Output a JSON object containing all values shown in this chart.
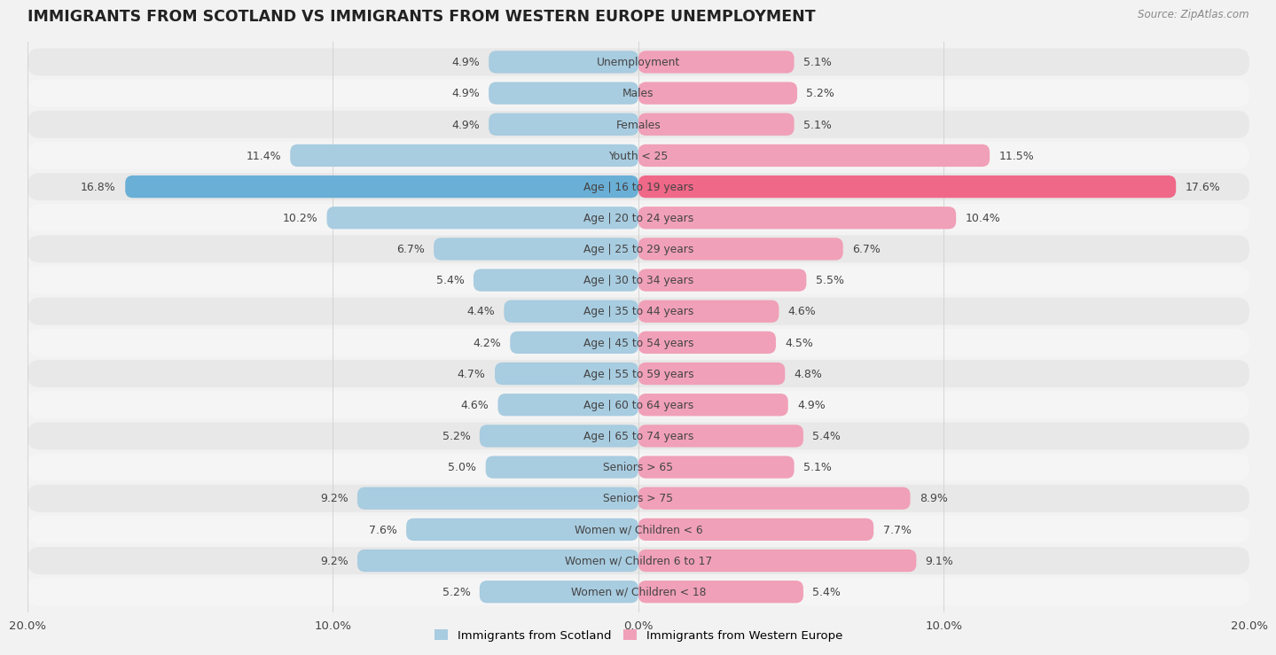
{
  "title": "IMMIGRANTS FROM SCOTLAND VS IMMIGRANTS FROM WESTERN EUROPE UNEMPLOYMENT",
  "source": "Source: ZipAtlas.com",
  "categories": [
    "Unemployment",
    "Males",
    "Females",
    "Youth < 25",
    "Age | 16 to 19 years",
    "Age | 20 to 24 years",
    "Age | 25 to 29 years",
    "Age | 30 to 34 years",
    "Age | 35 to 44 years",
    "Age | 45 to 54 years",
    "Age | 55 to 59 years",
    "Age | 60 to 64 years",
    "Age | 65 to 74 years",
    "Seniors > 65",
    "Seniors > 75",
    "Women w/ Children < 6",
    "Women w/ Children 6 to 17",
    "Women w/ Children < 18"
  ],
  "scotland_values": [
    4.9,
    4.9,
    4.9,
    11.4,
    16.8,
    10.2,
    6.7,
    5.4,
    4.4,
    4.2,
    4.7,
    4.6,
    5.2,
    5.0,
    9.2,
    7.6,
    9.2,
    5.2
  ],
  "western_europe_values": [
    5.1,
    5.2,
    5.1,
    11.5,
    17.6,
    10.4,
    6.7,
    5.5,
    4.6,
    4.5,
    4.8,
    4.9,
    5.4,
    5.1,
    8.9,
    7.7,
    9.1,
    5.4
  ],
  "scotland_color": "#a8cce0",
  "western_europe_color": "#f0a0b8",
  "scotland_highlight_color": "#6aafd6",
  "western_europe_highlight_color": "#f06888",
  "background_color": "#f2f2f2",
  "row_bg_even": "#e8e8e8",
  "row_bg_odd": "#f5f5f5",
  "axis_limit": 20.0,
  "legend_scotland": "Immigrants from Scotland",
  "legend_western_europe": "Immigrants from Western Europe",
  "tick_labels": [
    "20.0%",
    "10.0%",
    "0.0%",
    "10.0%",
    "20.0%"
  ],
  "tick_positions": [
    -20,
    -10,
    0,
    10,
    20
  ]
}
